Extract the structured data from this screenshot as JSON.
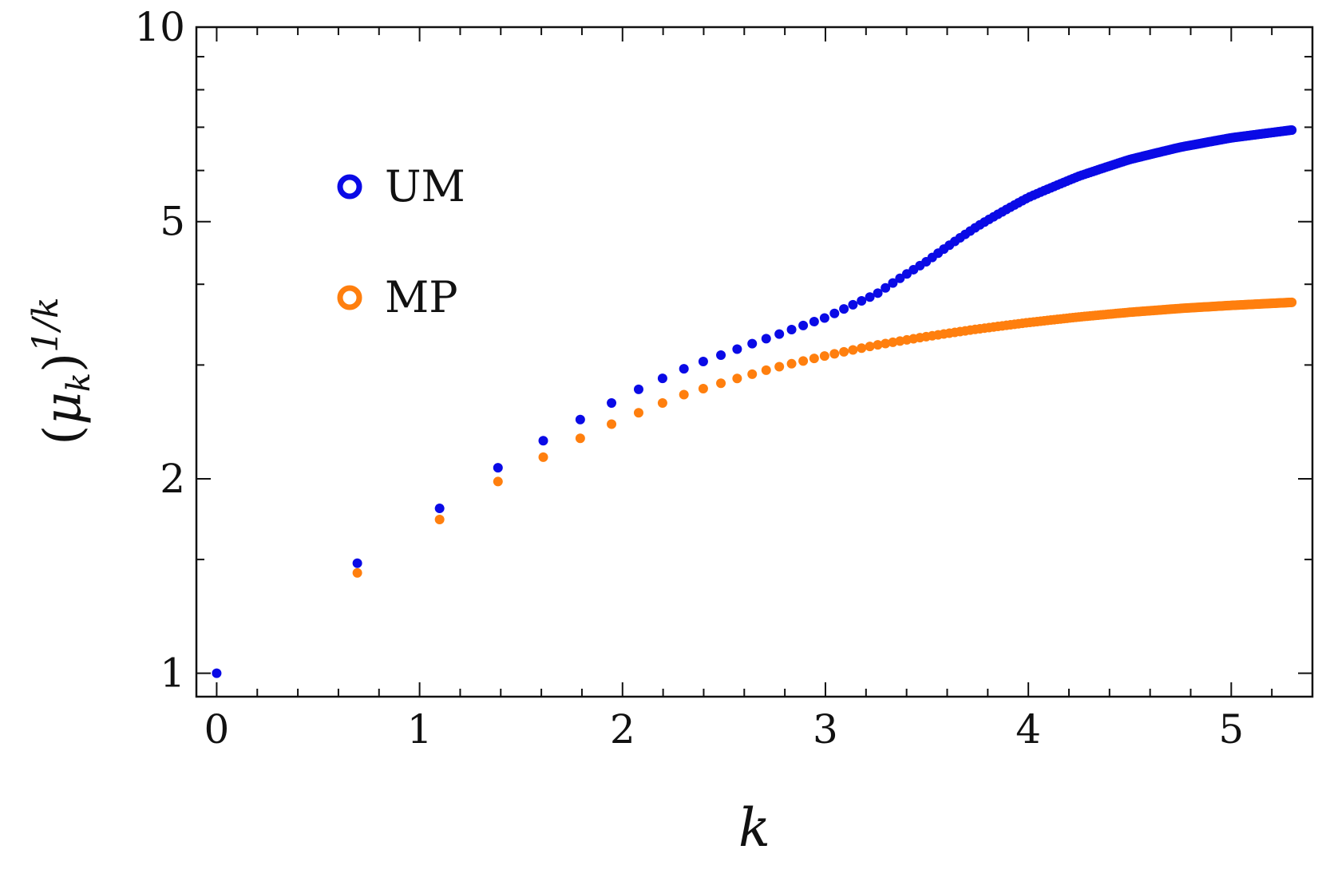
{
  "chart_data": {
    "type": "scatter",
    "title": "",
    "xlabel": "k",
    "ylabel_parts": {
      "open": "(",
      "base": "μ",
      "sub": "k",
      "close": ")",
      "sup": "1/k"
    },
    "xlim": [
      -0.1,
      5.4
    ],
    "ylim": [
      0.92,
      10
    ],
    "yscale": "log",
    "grid": false,
    "legend_position": "upper-left",
    "x_ticks": [
      0,
      1,
      2,
      3,
      4,
      5
    ],
    "x_tick_labels": [
      "0",
      "1",
      "2",
      "3",
      "4",
      "5"
    ],
    "y_ticks": [
      1,
      2,
      5,
      10
    ],
    "y_tick_labels": [
      "1",
      "2",
      "5",
      "10"
    ],
    "x_rule": "x = ln(n), n = 1..200",
    "n_points": 200,
    "series": [
      {
        "name": "UM",
        "color": "#0a0ae6",
        "anchors": [
          [
            0.0,
            1.0
          ],
          [
            0.693,
            1.48
          ],
          [
            1.099,
            1.8
          ],
          [
            1.386,
            2.08
          ],
          [
            1.609,
            2.29
          ],
          [
            1.792,
            2.47
          ],
          [
            1.946,
            2.62
          ],
          [
            2.079,
            2.75
          ],
          [
            2.197,
            2.86
          ],
          [
            2.303,
            2.96
          ],
          [
            2.5,
            3.12
          ],
          [
            2.75,
            3.33
          ],
          [
            3.0,
            3.55
          ],
          [
            3.25,
            3.86
          ],
          [
            3.5,
            4.34
          ],
          [
            3.75,
            4.92
          ],
          [
            4.0,
            5.45
          ],
          [
            4.25,
            5.88
          ],
          [
            4.5,
            6.24
          ],
          [
            4.75,
            6.52
          ],
          [
            5.0,
            6.74
          ],
          [
            5.298,
            6.93
          ]
        ]
      },
      {
        "name": "MP",
        "color": "#ff7f0e",
        "anchors": [
          [
            0.693,
            1.43
          ],
          [
            1.099,
            1.73
          ],
          [
            1.386,
            1.98
          ],
          [
            1.609,
            2.16
          ],
          [
            1.792,
            2.31
          ],
          [
            1.946,
            2.43
          ],
          [
            2.079,
            2.53
          ],
          [
            2.197,
            2.62
          ],
          [
            2.303,
            2.7
          ],
          [
            2.5,
            2.82
          ],
          [
            2.75,
            2.97
          ],
          [
            3.0,
            3.1
          ],
          [
            3.25,
            3.22
          ],
          [
            3.5,
            3.32
          ],
          [
            3.75,
            3.41
          ],
          [
            4.0,
            3.49
          ],
          [
            4.25,
            3.56
          ],
          [
            4.5,
            3.62
          ],
          [
            4.75,
            3.67
          ],
          [
            5.0,
            3.71
          ],
          [
            5.298,
            3.75
          ]
        ]
      }
    ]
  }
}
